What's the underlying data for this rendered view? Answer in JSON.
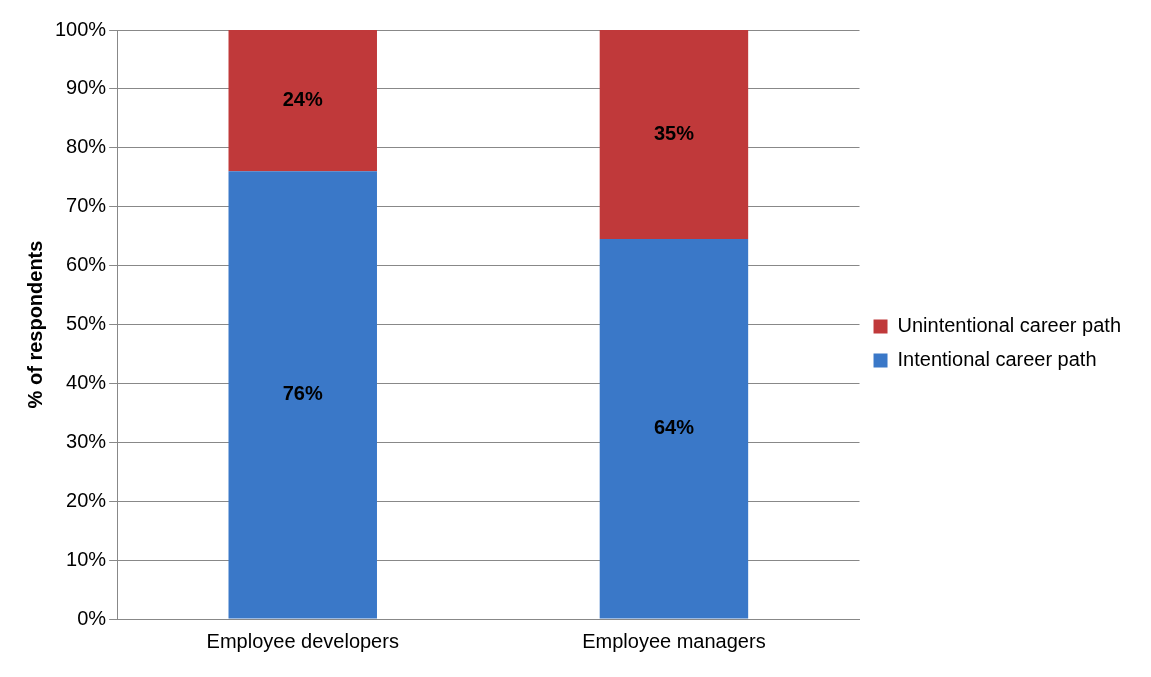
{
  "chart_data": {
    "type": "bar",
    "stacked": true,
    "ylabel": "% of respondents",
    "categories": [
      "Employee developers",
      "Employee managers"
    ],
    "series": [
      {
        "name": "Intentional career path",
        "color": "#3a78c8",
        "values": [
          76,
          64.5
        ],
        "value_labels": [
          "76%",
          "64%"
        ]
      },
      {
        "name": "Unintentional career path",
        "color": "#c0393a",
        "values": [
          24,
          35.5
        ],
        "value_labels": [
          "24%",
          "35%"
        ]
      }
    ],
    "ylim": [
      0,
      100
    ],
    "yticks": [
      {
        "value": 0,
        "label": "0%"
      },
      {
        "value": 10,
        "label": "10%"
      },
      {
        "value": 20,
        "label": "20%"
      },
      {
        "value": 30,
        "label": "30%"
      },
      {
        "value": 40,
        "label": "40%"
      },
      {
        "value": 50,
        "label": "50%"
      },
      {
        "value": 60,
        "label": "60%"
      },
      {
        "value": 70,
        "label": "70%"
      },
      {
        "value": 80,
        "label": "80%"
      },
      {
        "value": 90,
        "label": "90%"
      },
      {
        "value": 100,
        "label": "100%"
      }
    ],
    "grid": "y",
    "legend": "right"
  }
}
